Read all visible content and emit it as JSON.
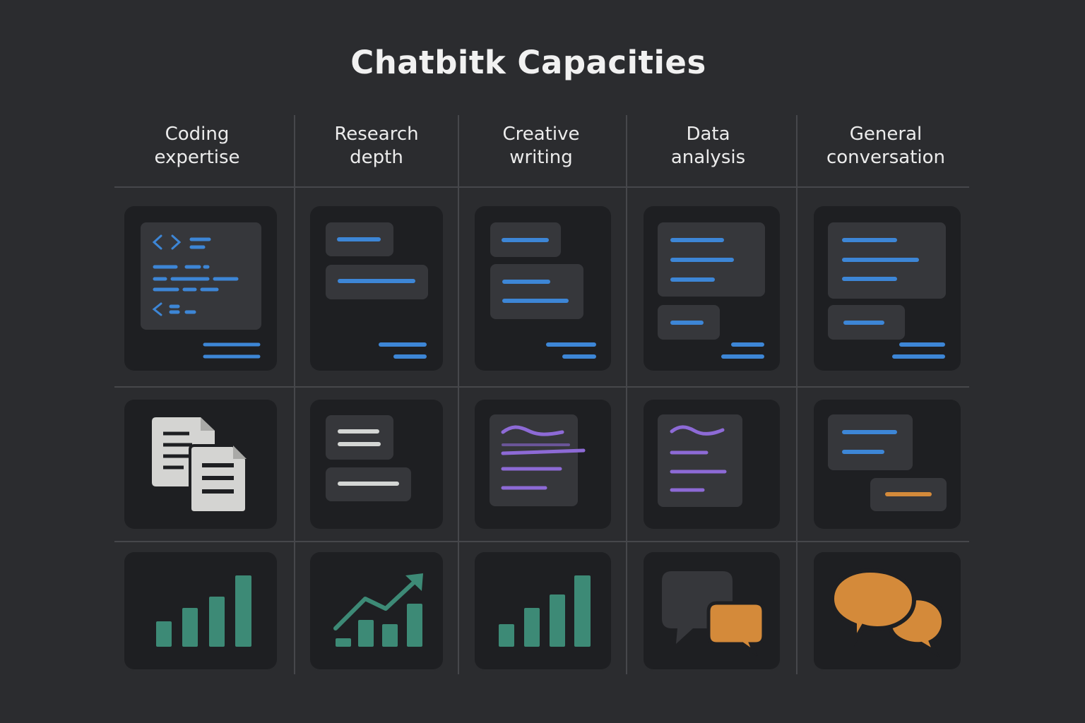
{
  "title": "Chatbitk Capacities",
  "columns": [
    {
      "line1": "Coding",
      "line2": "expertise"
    },
    {
      "line1": "Research",
      "line2": "depth"
    },
    {
      "line1": "Creative",
      "line2": "writing"
    },
    {
      "line1": "Data",
      "line2": "analysis"
    },
    {
      "line1": "General",
      "line2": "conversation"
    }
  ],
  "colors": {
    "background": "#2b2c2f",
    "tile": "#1e1f22",
    "panel": "#36373b",
    "blue": "#3d86d6",
    "purple": "#8d6ad6",
    "teal": "#3d8a76",
    "orange": "#d48a3a",
    "doc_gray": "#d4d4d2",
    "grid_line": "#46474b"
  },
  "tiles": [
    {
      "row": 1,
      "col": 1,
      "icon": "code-editor-icon"
    },
    {
      "row": 1,
      "col": 2,
      "icon": "chat-bubbles-text-icon"
    },
    {
      "row": 1,
      "col": 3,
      "icon": "chat-bubbles-text-icon"
    },
    {
      "row": 1,
      "col": 4,
      "icon": "chat-bubbles-text-icon"
    },
    {
      "row": 1,
      "col": 5,
      "icon": "chat-bubbles-text-icon"
    },
    {
      "row": 2,
      "col": 1,
      "icon": "documents-icon"
    },
    {
      "row": 2,
      "col": 2,
      "icon": "text-cards-icon"
    },
    {
      "row": 2,
      "col": 3,
      "icon": "handwriting-card-icon"
    },
    {
      "row": 2,
      "col": 4,
      "icon": "handwriting-card-icon"
    },
    {
      "row": 2,
      "col": 5,
      "icon": "chat-messages-icon"
    },
    {
      "row": 3,
      "col": 1,
      "icon": "bar-chart-icon"
    },
    {
      "row": 3,
      "col": 2,
      "icon": "trend-chart-icon"
    },
    {
      "row": 3,
      "col": 3,
      "icon": "bar-chart-icon"
    },
    {
      "row": 3,
      "col": 4,
      "icon": "speech-bubbles-icon"
    },
    {
      "row": 3,
      "col": 5,
      "icon": "speech-bubbles-icon"
    }
  ]
}
